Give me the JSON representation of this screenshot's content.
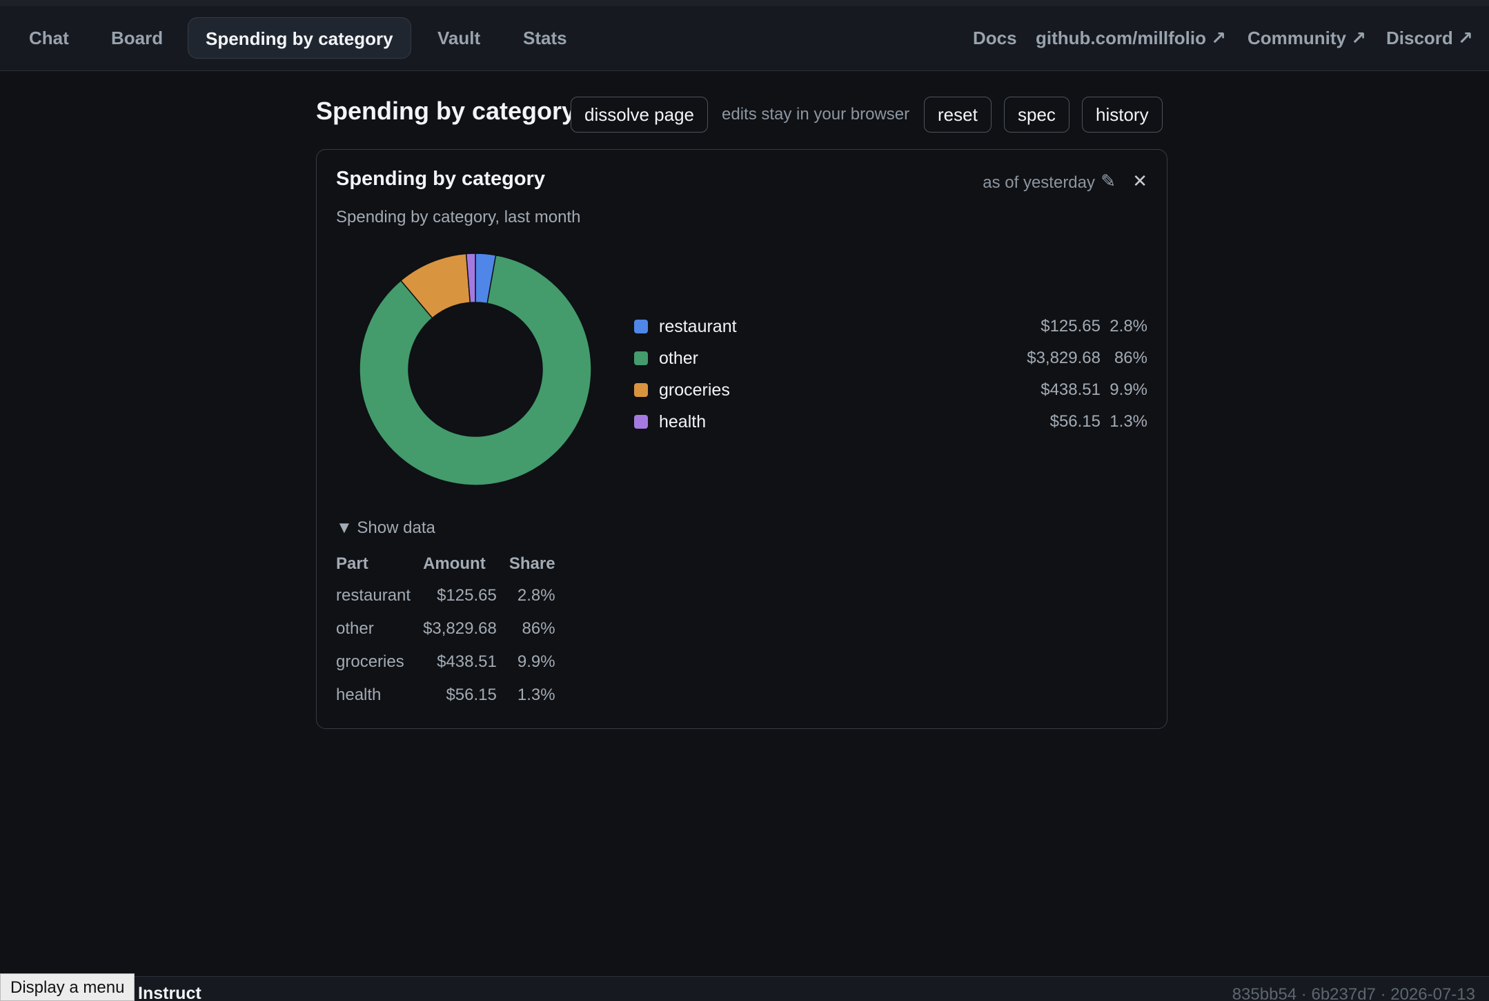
{
  "nav": {
    "tabs": [
      {
        "label": "Chat"
      },
      {
        "label": "Board"
      },
      {
        "label": "Spending by category",
        "active": true
      },
      {
        "label": "Vault"
      },
      {
        "label": "Stats"
      }
    ],
    "links": [
      {
        "label": "Docs"
      },
      {
        "label": "github.com/millfolio ↗"
      },
      {
        "label": "Community ↗"
      },
      {
        "label": "Discord ↗"
      }
    ]
  },
  "page": {
    "title": "Spending by category",
    "dissolve_label": "dissolve page",
    "hint": "edits stay in your browser",
    "reset_label": "reset",
    "spec_label": "spec",
    "history_label": "history"
  },
  "card": {
    "title": "Spending by category",
    "as_of": "as of yesterday",
    "edit_icon": "pencil-icon",
    "close_icon": "close-icon",
    "subtitle": "Spending by category, last month",
    "show_data_label": "▼ Show data"
  },
  "colors": {
    "restaurant": "#4f86e8",
    "other": "#449b6c",
    "groceries": "#d9943f",
    "health": "#a479e0"
  },
  "chart_data": {
    "type": "pie",
    "donut": true,
    "title": "Spending by category, last month",
    "slices": [
      {
        "label": "restaurant",
        "value": 125.65,
        "amount": "$125.65",
        "share": "2.8%",
        "color": "#4f86e8"
      },
      {
        "label": "other",
        "value": 3829.68,
        "amount": "$3,829.68",
        "share": "86%",
        "color": "#449b6c"
      },
      {
        "label": "groceries",
        "value": 438.51,
        "amount": "$438.51",
        "share": "9.9%",
        "color": "#d9943f"
      },
      {
        "label": "health",
        "value": 56.15,
        "amount": "$56.15",
        "share": "1.3%",
        "color": "#a479e0"
      }
    ],
    "legend_position": "right"
  },
  "table": {
    "headers": [
      "Part",
      "Amount",
      "Share"
    ],
    "rows": [
      [
        "restaurant",
        "$125.65",
        "2.8%"
      ],
      [
        "other",
        "$3,829.68",
        "86%"
      ],
      [
        "groceries",
        "$438.51",
        "9.9%"
      ],
      [
        "health",
        "$56.15",
        "1.3%"
      ]
    ]
  },
  "footer": {
    "instruct_label": "Instruct",
    "meta": "835bb54 · 6b237d7 · 2026-07-13"
  },
  "tooltip": {
    "text": "Display a menu"
  }
}
